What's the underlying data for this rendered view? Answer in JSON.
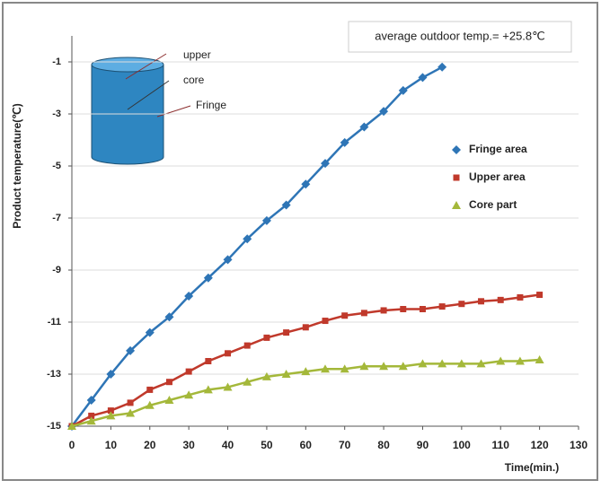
{
  "chart_data": {
    "type": "line",
    "xlabel": "Time(min.)",
    "ylabel": "Product temperature(℃)",
    "annotation": "average outdoor temp.= +25.8℃",
    "diagram_labels": [
      "upper",
      "core",
      "Fringe"
    ],
    "xlim": [
      0,
      130
    ],
    "xticks": [
      0,
      10,
      20,
      30,
      40,
      50,
      60,
      70,
      80,
      90,
      100,
      110,
      120,
      130
    ],
    "ylim": [
      -15,
      0
    ],
    "yticks": [
      -15,
      -13,
      -11,
      -9,
      -7,
      -5,
      -3,
      -1
    ],
    "grid": true,
    "legend": "right",
    "series": [
      {
        "name": "Fringe area",
        "color": "#2e75b6",
        "marker": "diamond",
        "x": [
          0,
          5,
          10,
          15,
          20,
          25,
          30,
          35,
          40,
          45,
          50,
          55,
          60,
          65,
          70,
          75,
          80,
          85,
          90,
          95
        ],
        "values": [
          -15,
          -14,
          -13,
          -12.1,
          -11.4,
          -10.8,
          -10,
          -9.3,
          -8.6,
          -7.8,
          -7.1,
          -6.5,
          -5.7,
          -4.9,
          -4.1,
          -3.5,
          -2.9,
          -2.1,
          -1.6,
          -1.2
        ]
      },
      {
        "name": "Upper area",
        "color": "#c0392b",
        "marker": "square",
        "x": [
          0,
          5,
          10,
          15,
          20,
          25,
          30,
          35,
          40,
          45,
          50,
          55,
          60,
          65,
          70,
          75,
          80,
          85,
          90,
          95,
          100,
          105,
          110,
          115,
          120
        ],
        "values": [
          -15,
          -14.6,
          -14.4,
          -14.1,
          -13.6,
          -13.3,
          -12.9,
          -12.5,
          -12.2,
          -11.9,
          -11.6,
          -11.4,
          -11.2,
          -10.95,
          -10.75,
          -10.65,
          -10.55,
          -10.5,
          -10.5,
          -10.4,
          -10.3,
          -10.2,
          -10.15,
          -10.05,
          -9.95
        ]
      },
      {
        "name": "Core part",
        "color": "#a4b83a",
        "marker": "triangle",
        "x": [
          0,
          5,
          10,
          15,
          20,
          25,
          30,
          35,
          40,
          45,
          50,
          55,
          60,
          65,
          70,
          75,
          80,
          85,
          90,
          95,
          100,
          105,
          110,
          115,
          120
        ],
        "values": [
          -15,
          -14.8,
          -14.6,
          -14.5,
          -14.2,
          -14,
          -13.8,
          -13.6,
          -13.5,
          -13.3,
          -13.1,
          -13,
          -12.9,
          -12.8,
          -12.8,
          -12.7,
          -12.7,
          -12.7,
          -12.6,
          -12.6,
          -12.6,
          -12.6,
          -12.5,
          -12.5,
          -12.45
        ]
      }
    ]
  }
}
